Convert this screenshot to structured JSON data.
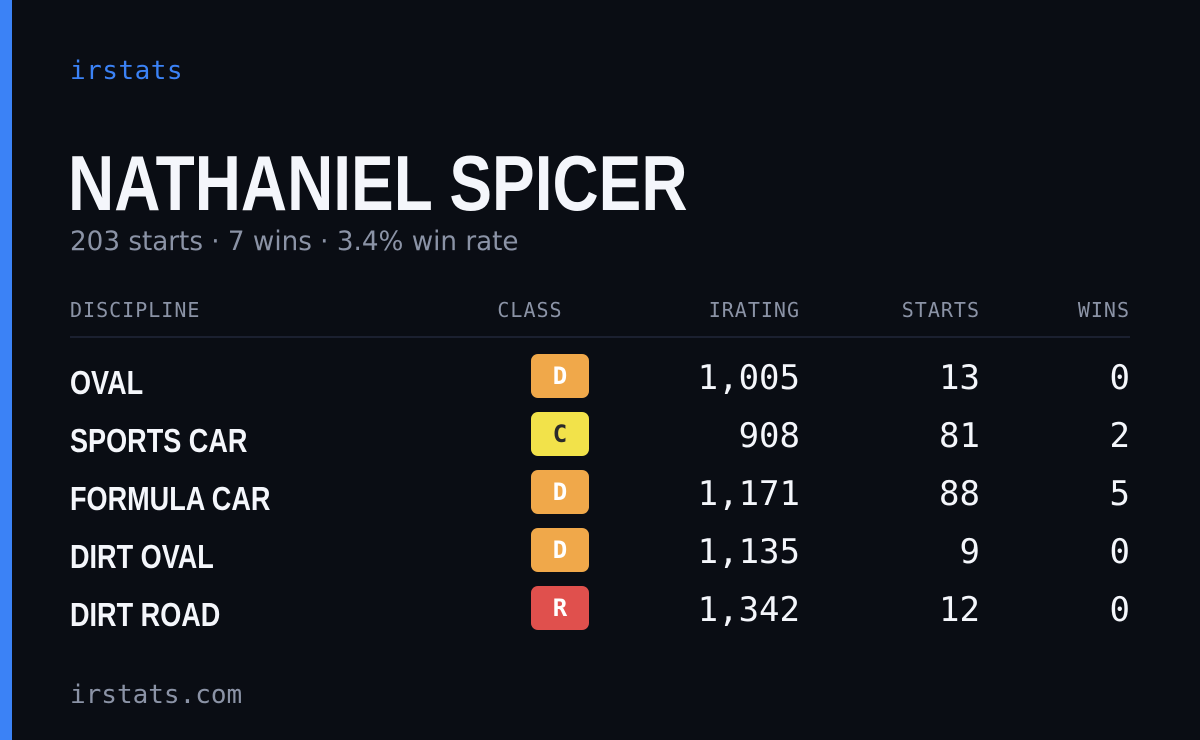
{
  "brand": "irstats",
  "driver": {
    "name": "NATHANIEL SPICER",
    "summary": "203 starts · 7 wins · 3.4% win rate"
  },
  "table": {
    "headers": {
      "discipline": "DISCIPLINE",
      "class": "CLASS",
      "irating": "IRATING",
      "starts": "STARTS",
      "wins": "WINS"
    },
    "rows": [
      {
        "discipline": "OVAL",
        "class": "D",
        "class_color": "#f0a84a",
        "class_text_color": "#ffffff",
        "irating": "1,005",
        "starts": "13",
        "wins": "0"
      },
      {
        "discipline": "SPORTS CAR",
        "class": "C",
        "class_color": "#f2e24a",
        "class_text_color": "#2a2a2a",
        "irating": "908",
        "starts": "81",
        "wins": "2"
      },
      {
        "discipline": "FORMULA CAR",
        "class": "D",
        "class_color": "#f0a84a",
        "class_text_color": "#ffffff",
        "irating": "1,171",
        "starts": "88",
        "wins": "5"
      },
      {
        "discipline": "DIRT OVAL",
        "class": "D",
        "class_color": "#f0a84a",
        "class_text_color": "#ffffff",
        "irating": "1,135",
        "starts": "9",
        "wins": "0"
      },
      {
        "discipline": "DIRT ROAD",
        "class": "R",
        "class_color": "#e0504d",
        "class_text_color": "#ffffff",
        "irating": "1,342",
        "starts": "12",
        "wins": "0"
      }
    ]
  },
  "footer": "irstats.com",
  "colors": {
    "background": "#0a0d14",
    "accent": "#3b82f6",
    "text": "#f4f6fb",
    "muted": "#8b93a6"
  }
}
